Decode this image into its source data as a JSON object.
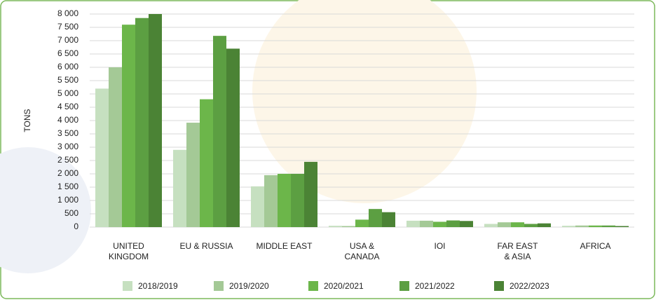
{
  "chart_data": {
    "type": "bar",
    "y_label": "TONS",
    "categories": [
      "UNITED\nKINGDOM",
      "EU & RUSSIA",
      "MIDDLE EAST",
      "USA &\nCANADA",
      "IOI",
      "FAR EAST\n& ASIA",
      "AFRICA"
    ],
    "series": [
      {
        "name": "2018/2019",
        "color": "#c6e0c0",
        "values": [
          5200,
          2900,
          1530,
          50,
          240,
          120,
          50
        ]
      },
      {
        "name": "2019/2020",
        "color": "#a4c996",
        "values": [
          6000,
          3920,
          1950,
          40,
          240,
          180,
          60
        ]
      },
      {
        "name": "2020/2021",
        "color": "#6cb64a",
        "values": [
          7600,
          4800,
          2000,
          280,
          200,
          180,
          60
        ]
      },
      {
        "name": "2021/2022",
        "color": "#5c9f42",
        "values": [
          7850,
          7180,
          2000,
          680,
          250,
          120,
          60
        ]
      },
      {
        "name": "2022/2023",
        "color": "#4b8335",
        "values": [
          8000,
          6700,
          2450,
          560,
          230,
          140,
          40
        ]
      }
    ],
    "ylim": [
      0,
      8000
    ],
    "yticks": [
      0,
      500,
      {
        "value": 1000,
        "label": "1 000"
      },
      {
        "value": 1500,
        "label": "1 500"
      },
      {
        "value": 2000,
        "label": "2 000"
      },
      {
        "value": 2500,
        "label": "2 500"
      },
      {
        "value": 3000,
        "label": "3 000"
      },
      {
        "value": 3500,
        "label": "3 500"
      },
      {
        "value": 4000,
        "label": "4 000"
      },
      {
        "value": 4500,
        "label": "4 500"
      },
      {
        "value": 5000,
        "label": "5 000"
      },
      {
        "value": 5500,
        "label": "5 500"
      },
      {
        "value": 6000,
        "label": "6 000"
      },
      {
        "value": 6500,
        "label": "6 500"
      },
      {
        "value": 7000,
        "label": "7 000"
      },
      {
        "value": 7500,
        "label": "7 500"
      },
      {
        "value": 8000,
        "label": "8 000"
      }
    ],
    "grid": true,
    "legend": "bottom"
  }
}
